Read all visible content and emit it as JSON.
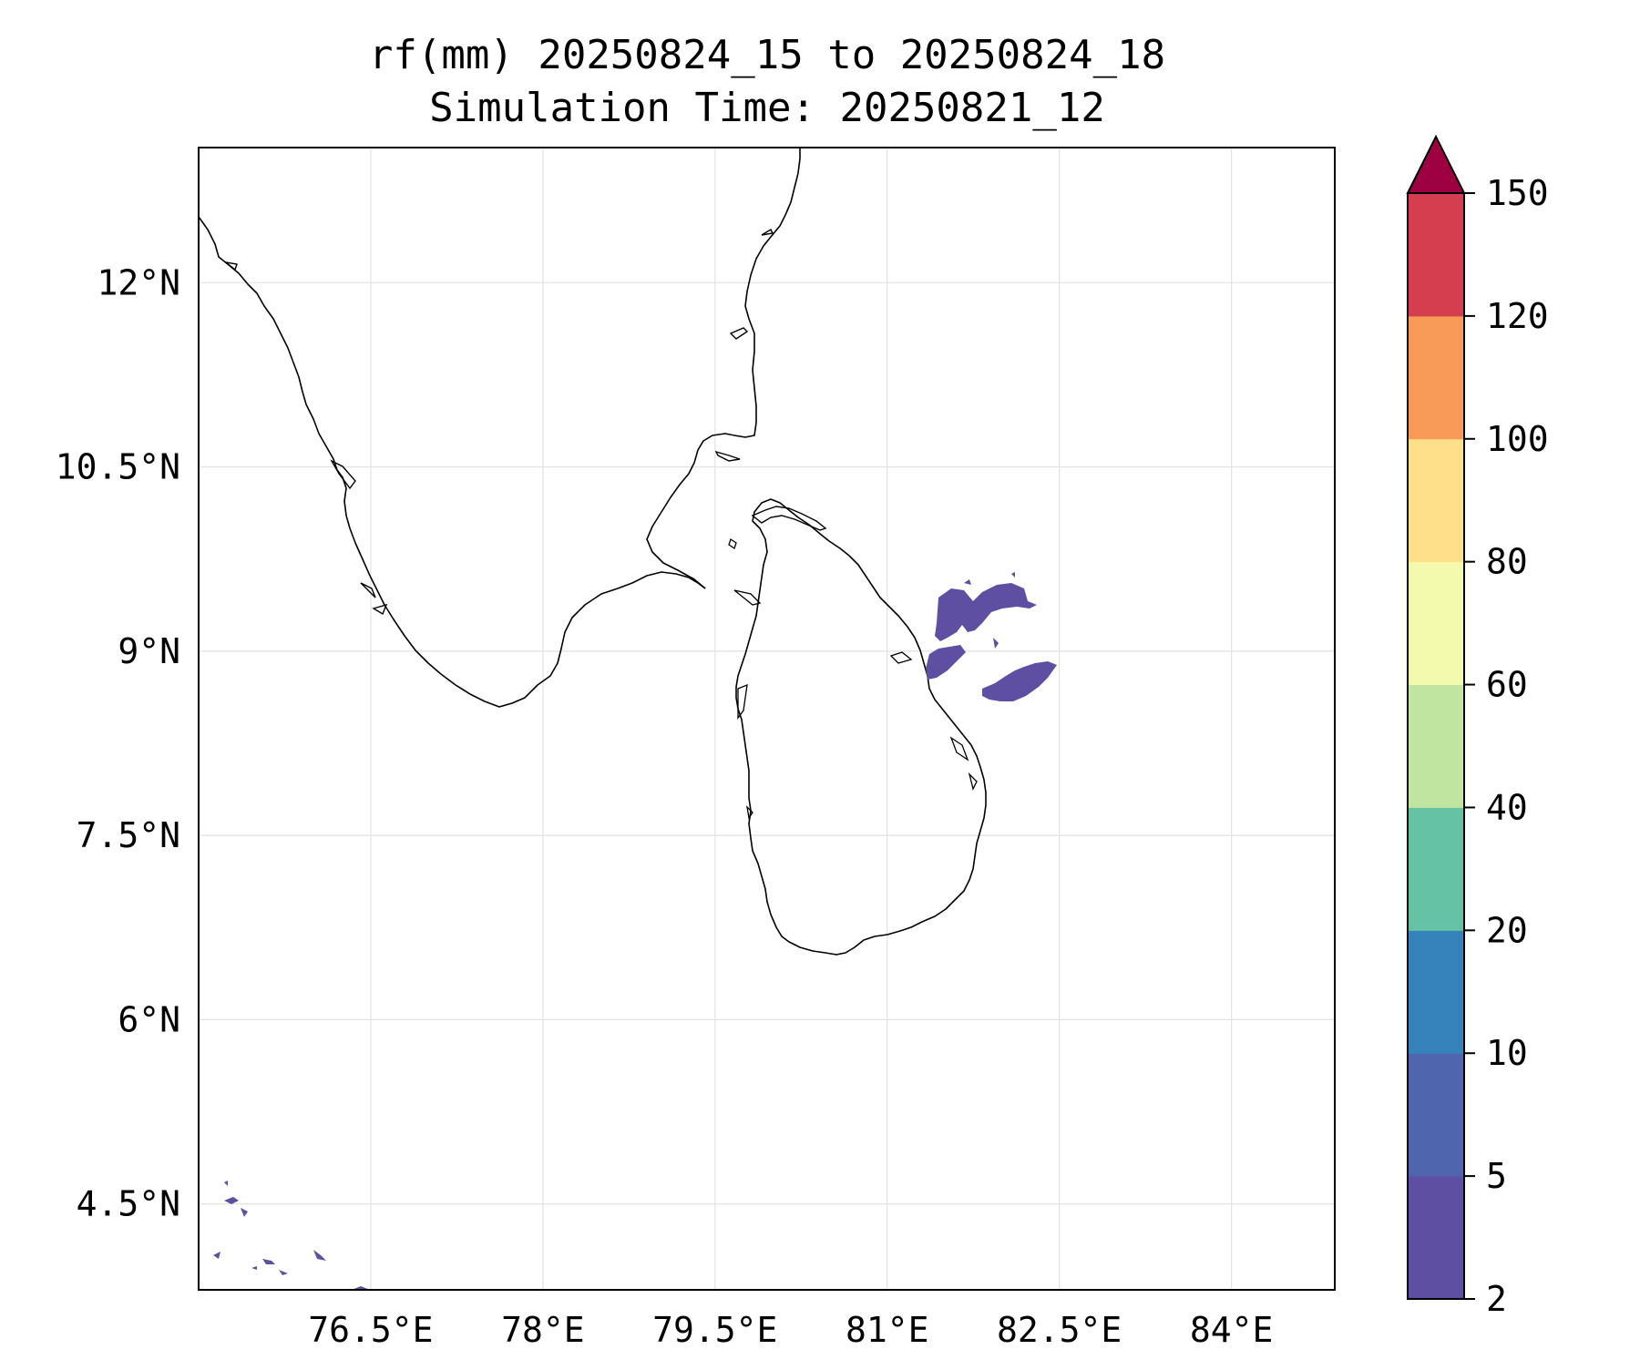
{
  "title": {
    "line1": "rf(mm) 20250824_15 to 20250824_18",
    "line2": "Simulation Time: 20250821_12"
  },
  "map": {
    "lon_range": [
      75.0,
      84.9
    ],
    "lat_range": [
      3.8,
      13.1
    ],
    "x_ticks": [
      {
        "value": 76.5,
        "label": "76.5°E"
      },
      {
        "value": 78.0,
        "label": "78°E"
      },
      {
        "value": 79.5,
        "label": "79.5°E"
      },
      {
        "value": 81.0,
        "label": "81°E"
      },
      {
        "value": 82.5,
        "label": "82.5°E"
      },
      {
        "value": 84.0,
        "label": "84°E"
      }
    ],
    "y_ticks": [
      {
        "value": 12.0,
        "label": "12°N"
      },
      {
        "value": 10.5,
        "label": "10.5°N"
      },
      {
        "value": 9.0,
        "label": "9°N"
      },
      {
        "value": 7.5,
        "label": "7.5°N"
      },
      {
        "value": 6.0,
        "label": "6°N"
      },
      {
        "value": 4.5,
        "label": "4.5°N"
      }
    ],
    "gridlines": true,
    "features": [
      "india-coastline",
      "sri-lanka-coastline",
      "rainfall-cells-2-5mm"
    ],
    "rain_color": "#5e4fa2"
  },
  "colorbar": {
    "extend": "max",
    "over_color": "#9e0142",
    "levels": [
      {
        "value": 2,
        "label": "2",
        "color": "#5e4fa2"
      },
      {
        "value": 5,
        "label": "5",
        "color": "#4f65ae"
      },
      {
        "value": 10,
        "label": "10",
        "color": "#3682ba"
      },
      {
        "value": 20,
        "label": "20",
        "color": "#66c2a5"
      },
      {
        "value": 40,
        "label": "40",
        "color": "#bfe5a0"
      },
      {
        "value": 60,
        "label": "60",
        "color": "#f4faad"
      },
      {
        "value": 80,
        "label": "80",
        "color": "#fee08b"
      },
      {
        "value": 100,
        "label": "100",
        "color": "#f99b58"
      },
      {
        "value": 120,
        "label": "120",
        "color": "#d53e4f"
      },
      {
        "value": 150,
        "label": "150"
      }
    ]
  }
}
